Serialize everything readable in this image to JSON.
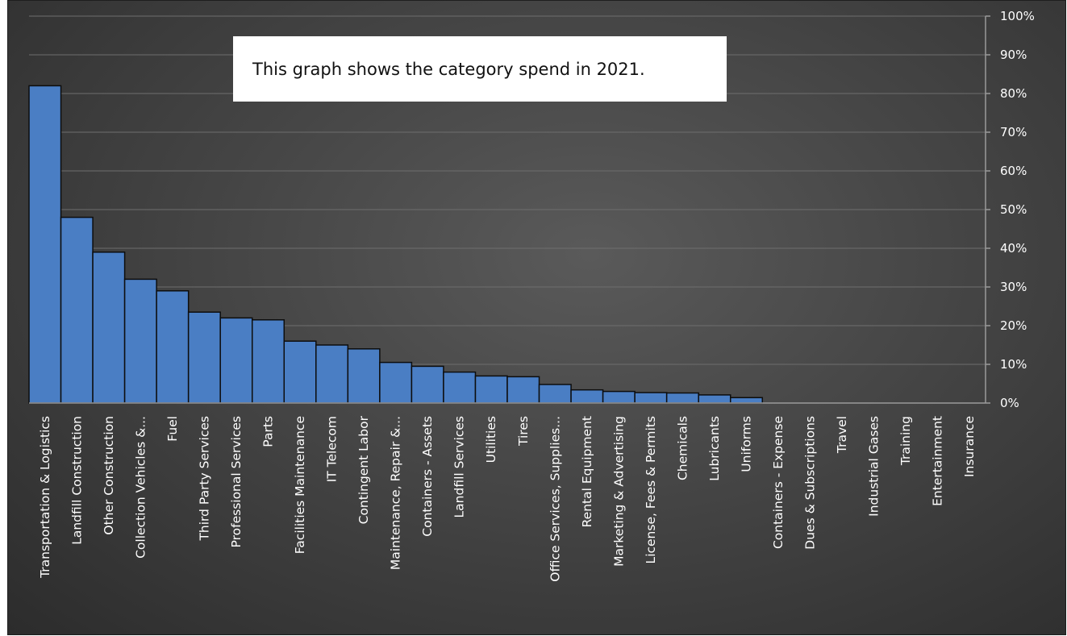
{
  "chart_data": {
    "type": "bar",
    "annotation": "This graph shows the category spend in 2021.",
    "categories": [
      "Transportation & Logistics",
      "Landfill Construction",
      "Other Construction",
      "Collection Vehicles &...",
      "Fuel",
      "Third Party Services",
      "Professional Services",
      "Parts",
      "Facilities Maintenance",
      "IT Telecom",
      "Contingent Labor",
      "Maintenance, Repair &...",
      "Containers - Assets",
      "Landfill Services",
      "Utilities",
      "Tires",
      "Office Services, Supplies...",
      "Rental Equipment",
      "Marketing & Advertising",
      "License, Fees & Permits",
      "Chemicals",
      "Lubricants",
      "Uniforms",
      "Containers - Expense",
      "Dues & Subscriptions",
      "Travel",
      "Industrial Gases",
      "Training",
      "Entertainment",
      "Insurance"
    ],
    "values": [
      82,
      48,
      39,
      32,
      29,
      23.5,
      22,
      21.5,
      16,
      15,
      14,
      10.5,
      9.5,
      8,
      7,
      6.8,
      4.8,
      3.4,
      3,
      2.7,
      2.6,
      2.1,
      1.4,
      0,
      0,
      0,
      0,
      0,
      0,
      0
    ],
    "y_axis": {
      "position": "right",
      "ylim": [
        0,
        100
      ],
      "ticks": [
        "0%",
        "10%",
        "20%",
        "30%",
        "40%",
        "50%",
        "60%",
        "70%",
        "80%",
        "90%",
        "100%"
      ]
    },
    "grid": true,
    "legend": "none",
    "colors": {
      "bar_fill": "#4a7ec4",
      "bar_stroke": "#0d0d0d",
      "grid": "#6e6e6e",
      "axis": "#9a9a9a",
      "text": "#ffffff"
    }
  }
}
